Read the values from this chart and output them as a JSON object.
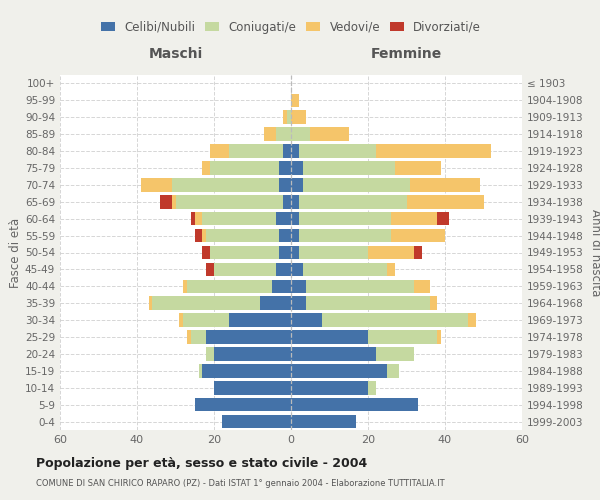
{
  "age_groups": [
    "0-4",
    "5-9",
    "10-14",
    "15-19",
    "20-24",
    "25-29",
    "30-34",
    "35-39",
    "40-44",
    "45-49",
    "50-54",
    "55-59",
    "60-64",
    "65-69",
    "70-74",
    "75-79",
    "80-84",
    "85-89",
    "90-94",
    "95-99",
    "100+"
  ],
  "birth_years": [
    "1999-2003",
    "1994-1998",
    "1989-1993",
    "1984-1988",
    "1979-1983",
    "1974-1978",
    "1969-1973",
    "1964-1968",
    "1959-1963",
    "1954-1958",
    "1949-1953",
    "1944-1948",
    "1939-1943",
    "1934-1938",
    "1929-1933",
    "1924-1928",
    "1919-1923",
    "1914-1918",
    "1909-1913",
    "1904-1908",
    "≤ 1903"
  ],
  "colors": {
    "celibi": "#4472a8",
    "coniugati": "#c5d9a0",
    "vedovi": "#f5c56a",
    "divorziati": "#c0392b"
  },
  "maschi": {
    "celibi": [
      18,
      25,
      20,
      23,
      20,
      22,
      16,
      8,
      5,
      4,
      3,
      3,
      4,
      2,
      3,
      3,
      2,
      0,
      0,
      0,
      0
    ],
    "coniugati": [
      0,
      0,
      0,
      1,
      2,
      4,
      12,
      28,
      22,
      16,
      18,
      19,
      19,
      28,
      28,
      18,
      14,
      4,
      1,
      0,
      0
    ],
    "vedovi": [
      0,
      0,
      0,
      0,
      0,
      1,
      1,
      1,
      1,
      0,
      0,
      1,
      2,
      1,
      8,
      2,
      5,
      3,
      1,
      0,
      0
    ],
    "divorziati": [
      0,
      0,
      0,
      0,
      0,
      0,
      0,
      0,
      0,
      2,
      2,
      2,
      1,
      3,
      0,
      0,
      0,
      0,
      0,
      0,
      0
    ]
  },
  "femmine": {
    "celibi": [
      17,
      33,
      20,
      25,
      22,
      20,
      8,
      4,
      4,
      3,
      2,
      2,
      2,
      2,
      3,
      3,
      2,
      0,
      0,
      0,
      0
    ],
    "coniugati": [
      0,
      0,
      2,
      3,
      10,
      18,
      38,
      32,
      28,
      22,
      18,
      24,
      24,
      28,
      28,
      24,
      20,
      5,
      0,
      0,
      0
    ],
    "vedovi": [
      0,
      0,
      0,
      0,
      0,
      1,
      2,
      2,
      4,
      2,
      12,
      14,
      12,
      20,
      18,
      12,
      30,
      10,
      4,
      2,
      0
    ],
    "divorziati": [
      0,
      0,
      0,
      0,
      0,
      0,
      0,
      0,
      0,
      0,
      2,
      0,
      3,
      0,
      0,
      0,
      0,
      0,
      0,
      0,
      0
    ]
  },
  "xlim": 60,
  "title": "Popolazione per età, sesso e stato civile - 2004",
  "subtitle": "COMUNE DI SAN CHIRICO RAPARO (PZ) - Dati ISTAT 1° gennaio 2004 - Elaborazione TUTTITALIA.IT",
  "xlabel_left": "Maschi",
  "xlabel_right": "Femmine",
  "ylabel_left": "Fasce di età",
  "ylabel_right": "Anni di nascita",
  "legend_labels": [
    "Celibi/Nubili",
    "Coniugati/e",
    "Vedovi/e",
    "Divorziati/e"
  ],
  "background_color": "#f0f0eb",
  "plot_background": "#ffffff",
  "grid_color": "#cccccc"
}
